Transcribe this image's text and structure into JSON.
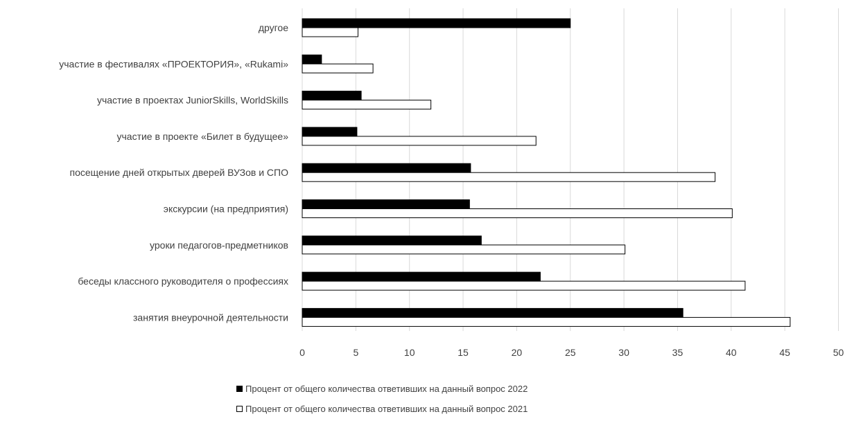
{
  "chart_data": {
    "type": "bar",
    "orientation": "horizontal",
    "categories": [
      "другое",
      "участие в фестивалях «ПРОЕКТОРИЯ», «Rukami»",
      "участие в проектах JuniorSkills, WorldSkills",
      "участие в проекте «Билет в будущее»",
      "посещение дней открытых дверей ВУЗов и СПО",
      "экскурсии (на предприятия)",
      "уроки педагогов-предметников",
      "беседы классного руководителя о профессиях",
      "занятия внеурочной деятельности"
    ],
    "series": [
      {
        "name": "Процент от общего  количества ответивших на данный вопрос 2022",
        "color": "#000000",
        "values": [
          25.0,
          1.8,
          5.5,
          5.1,
          15.7,
          15.6,
          16.7,
          22.2,
          35.5
        ]
      },
      {
        "name": "Процент от общего  количества ответивших на данный вопрос 2021",
        "color": "#ffffff",
        "values": [
          5.2,
          6.6,
          12.0,
          21.8,
          38.5,
          40.1,
          30.1,
          41.3,
          45.5
        ]
      }
    ],
    "xticks": [
      "0",
      "5",
      "10",
      "15",
      "20",
      "25",
      "30",
      "35",
      "40",
      "45",
      "50"
    ],
    "xlim": [
      0,
      50
    ],
    "grid": true,
    "legend_position": "bottom"
  }
}
